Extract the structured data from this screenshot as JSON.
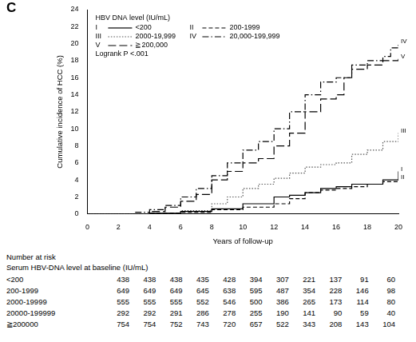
{
  "chart_data": {
    "type": "line",
    "panel_label": "C",
    "legend_title": "HBV DNA level (IU/mL)",
    "annotation": "Logrank P <.001",
    "x_label": "Years of follow-up",
    "y_label": "Cumulative incidence of HCC (%)",
    "xlim": [
      0,
      20
    ],
    "xticks": [
      0,
      2,
      4,
      6,
      8,
      10,
      12,
      14,
      16,
      18,
      20
    ],
    "ylim": [
      0,
      24
    ],
    "yticks": [
      0,
      2,
      4,
      6,
      8,
      10,
      12,
      14,
      16,
      18,
      20,
      22,
      24
    ],
    "grid": false,
    "legend": "top-left",
    "series": [
      {
        "label": "I",
        "name": "<200",
        "color": "#000000",
        "line_style": "solid",
        "x": [
          0,
          4,
          6,
          8,
          10,
          12,
          13,
          14,
          15,
          16,
          17,
          19,
          20
        ],
        "values": [
          0,
          0.1,
          0.3,
          0.6,
          1.2,
          2,
          2.2,
          2.5,
          3,
          3.2,
          3.5,
          4,
          5
        ]
      },
      {
        "label": "II",
        "name": "200-1999",
        "color": "#000000",
        "line_style": "dashed",
        "x": [
          0,
          4,
          6,
          8,
          10,
          12,
          13,
          14,
          15,
          16,
          17,
          18,
          19,
          20
        ],
        "values": [
          0,
          0.1,
          0.2,
          0.5,
          0.8,
          1.2,
          1.8,
          2.5,
          2.8,
          3,
          3.2,
          3.5,
          3.8,
          4
        ]
      },
      {
        "label": "III",
        "name": "2000-19,999",
        "color": "#555555",
        "line_style": "dotted",
        "x": [
          0,
          4,
          6,
          8,
          9,
          10,
          11,
          12,
          13,
          14,
          15,
          16,
          17,
          18,
          19,
          20
        ],
        "values": [
          0,
          0.1,
          0.4,
          1.2,
          2,
          3,
          3.5,
          4.2,
          4.8,
          5.5,
          5.8,
          6,
          7,
          7.5,
          8.5,
          9.5
        ]
      },
      {
        "label": "IV",
        "name": "20,000-199,999",
        "color": "#000000",
        "line_style": "dashdot",
        "x": [
          0,
          3,
          4,
          5,
          6,
          7,
          8,
          9,
          10,
          11,
          12,
          13,
          14,
          15,
          16,
          17,
          18,
          19,
          19.5,
          20
        ],
        "values": [
          0,
          0.2,
          0.5,
          1,
          2,
          3,
          4.5,
          6,
          7.5,
          8.5,
          10,
          12,
          14,
          15.5,
          16,
          17.5,
          18,
          18.5,
          19.5,
          20
        ]
      },
      {
        "label": "V",
        "name": "≧200,000",
        "color": "#000000",
        "line_style": "longdash",
        "x": [
          0,
          4,
          5,
          6,
          7,
          8,
          9,
          10,
          11,
          12,
          13,
          14,
          15,
          16,
          16.5,
          17,
          18,
          19,
          20
        ],
        "values": [
          0,
          0.3,
          0.8,
          1.5,
          2.3,
          4,
          5,
          6,
          6.5,
          8,
          9.5,
          12,
          13.5,
          14,
          16,
          17,
          17.5,
          18,
          18.2
        ]
      }
    ],
    "risk_table": {
      "title": "Number at risk",
      "subtitle": "Serum HBV-DNA level at baseline (IU/mL)",
      "rows": [
        {
          "label": "<200",
          "values": [
            438,
            438,
            438,
            435,
            428,
            394,
            307,
            221,
            137,
            91,
            60
          ]
        },
        {
          "label": "200-1999",
          "values": [
            649,
            649,
            649,
            645,
            638,
            595,
            487,
            354,
            228,
            146,
            98
          ]
        },
        {
          "label": "2000-19999",
          "values": [
            555,
            555,
            555,
            552,
            546,
            500,
            386,
            265,
            173,
            114,
            80
          ]
        },
        {
          "label": "20000-199999",
          "values": [
            292,
            292,
            291,
            286,
            278,
            255,
            190,
            141,
            90,
            59,
            40
          ]
        },
        {
          "label": "≧200000",
          "values": [
            754,
            754,
            752,
            743,
            720,
            657,
            522,
            343,
            208,
            143,
            104
          ]
        }
      ]
    }
  }
}
